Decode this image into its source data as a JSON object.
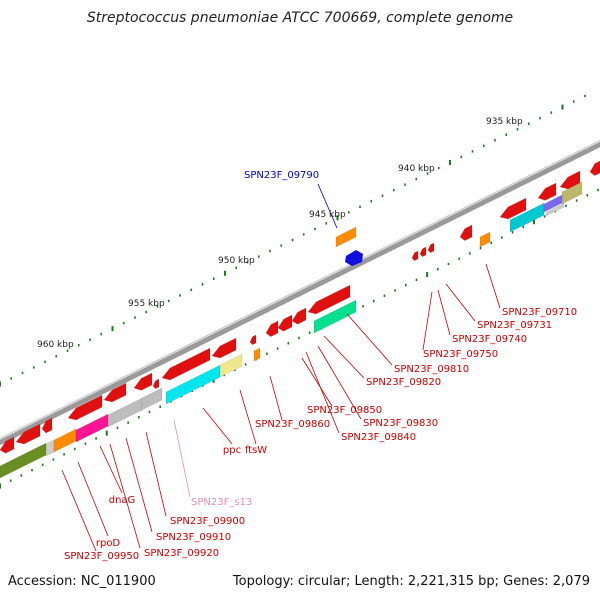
{
  "title": "Streptococcus pneumoniae ATCC 700669, complete genome",
  "accession": "Accession: NC_011900",
  "summary": "Topology: circular; Length: 2,221,315 bp; Genes: 2,079",
  "colors": {
    "backbone": "#8a8a8a",
    "gene_red": "#e01010",
    "ticks": "#1a7a1a",
    "label_red": "#cc0000",
    "label_blue": "#0000cc",
    "label_pink": "#e98fb0"
  },
  "scale_labels": [
    "935 kbp",
    "940 kbp",
    "945 kbp",
    "950 kbp",
    "955 kbp",
    "960 kbp"
  ],
  "gene_labels": [
    {
      "text": "SPN23F_09790",
      "color": "blue"
    },
    {
      "text": "SPN23F_09710",
      "color": "red"
    },
    {
      "text": "SPN23F_09731",
      "color": "red"
    },
    {
      "text": "SPN23F_09740",
      "color": "red"
    },
    {
      "text": "SPN23F_09750",
      "color": "red"
    },
    {
      "text": "SPN23F_09810",
      "color": "red"
    },
    {
      "text": "SPN23F_09820",
      "color": "red"
    },
    {
      "text": "SPN23F_09850",
      "color": "red"
    },
    {
      "text": "SPN23F_09830",
      "color": "red"
    },
    {
      "text": "SPN23F_09860",
      "color": "red"
    },
    {
      "text": "SPN23F_09840",
      "color": "red"
    },
    {
      "text": "ftsW",
      "color": "red"
    },
    {
      "text": "ppc",
      "color": "red"
    },
    {
      "text": "SPN23F_s13",
      "color": "pink"
    },
    {
      "text": "dnaG",
      "color": "red"
    },
    {
      "text": "SPN23F_09900",
      "color": "red"
    },
    {
      "text": "rpoD",
      "color": "red"
    },
    {
      "text": "SPN23F_09910",
      "color": "red"
    },
    {
      "text": "SPN23F_09950",
      "color": "red"
    },
    {
      "text": "SPN23F_09920",
      "color": "red"
    }
  ]
}
